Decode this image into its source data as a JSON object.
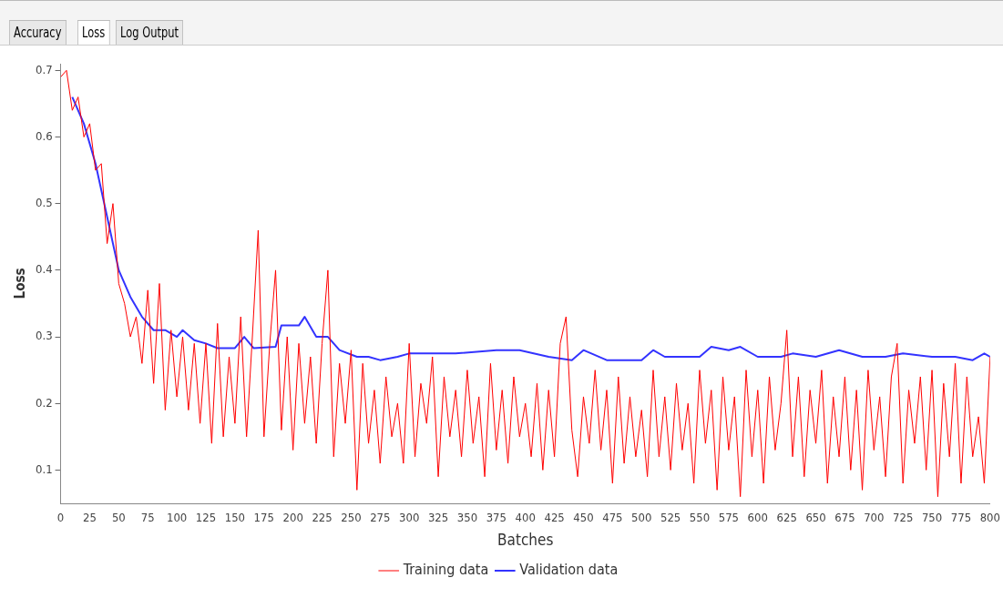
{
  "chart_data": {
    "type": "line",
    "xlabel": "Batches",
    "ylabel": "Loss",
    "annotations": [
      "Accuracy",
      "Loss",
      "Log Output"
    ],
    "xlim": [
      0,
      800
    ],
    "xticks": [
      0,
      25,
      50,
      75,
      100,
      125,
      150,
      175,
      200,
      225,
      250,
      275,
      300,
      325,
      350,
      375,
      400,
      425,
      450,
      475,
      500,
      525,
      550,
      575,
      600,
      625,
      650,
      675,
      700,
      725,
      750,
      775,
      800
    ],
    "ylim": [
      0.05,
      0.71
    ],
    "yticks": [
      0.1,
      0.2,
      0.3,
      0.4,
      0.5,
      0.6,
      0.7
    ],
    "legend": "bottom",
    "marker": "none",
    "series": [
      {
        "name": "Training data",
        "color": "#ff0000",
        "x": [
          0,
          5,
          10,
          15,
          20,
          25,
          30,
          35,
          40,
          45,
          50,
          55,
          60,
          65,
          70,
          75,
          80,
          85,
          90,
          95,
          100,
          105,
          110,
          115,
          120,
          125,
          130,
          135,
          140,
          145,
          150,
          155,
          160,
          165,
          170,
          175,
          180,
          185,
          190,
          195,
          200,
          205,
          210,
          215,
          220,
          225,
          230,
          235,
          240,
          245,
          250,
          255,
          260,
          265,
          270,
          275,
          280,
          285,
          290,
          295,
          300,
          305,
          310,
          315,
          320,
          325,
          330,
          335,
          340,
          345,
          350,
          355,
          360,
          365,
          370,
          375,
          380,
          385,
          390,
          395,
          400,
          405,
          410,
          415,
          420,
          425,
          430,
          435,
          440,
          445,
          450,
          455,
          460,
          465,
          470,
          475,
          480,
          485,
          490,
          495,
          500,
          505,
          510,
          515,
          520,
          525,
          530,
          535,
          540,
          545,
          550,
          555,
          560,
          565,
          570,
          575,
          580,
          585,
          590,
          595,
          600,
          605,
          610,
          615,
          620,
          625,
          630,
          635,
          640,
          645,
          650,
          655,
          660,
          665,
          670,
          675,
          680,
          685,
          690,
          695,
          700,
          705,
          710,
          715,
          720,
          725,
          730,
          735,
          740,
          745,
          750,
          755,
          760,
          765,
          770,
          775,
          780,
          785,
          790,
          795,
          800
        ],
        "values": [
          0.69,
          0.7,
          0.64,
          0.66,
          0.6,
          0.62,
          0.55,
          0.56,
          0.44,
          0.5,
          0.38,
          0.35,
          0.3,
          0.33,
          0.26,
          0.37,
          0.23,
          0.38,
          0.19,
          0.31,
          0.21,
          0.3,
          0.19,
          0.29,
          0.17,
          0.29,
          0.14,
          0.32,
          0.15,
          0.27,
          0.17,
          0.33,
          0.15,
          0.3,
          0.46,
          0.15,
          0.29,
          0.4,
          0.16,
          0.3,
          0.13,
          0.29,
          0.17,
          0.27,
          0.14,
          0.29,
          0.4,
          0.12,
          0.26,
          0.17,
          0.28,
          0.07,
          0.26,
          0.14,
          0.22,
          0.11,
          0.24,
          0.15,
          0.2,
          0.11,
          0.29,
          0.12,
          0.23,
          0.17,
          0.27,
          0.09,
          0.24,
          0.15,
          0.22,
          0.12,
          0.25,
          0.14,
          0.21,
          0.09,
          0.26,
          0.13,
          0.22,
          0.11,
          0.24,
          0.15,
          0.2,
          0.12,
          0.23,
          0.1,
          0.22,
          0.12,
          0.29,
          0.33,
          0.16,
          0.09,
          0.21,
          0.14,
          0.25,
          0.13,
          0.22,
          0.08,
          0.24,
          0.11,
          0.21,
          0.12,
          0.19,
          0.09,
          0.25,
          0.12,
          0.21,
          0.1,
          0.23,
          0.13,
          0.2,
          0.08,
          0.25,
          0.14,
          0.22,
          0.07,
          0.24,
          0.13,
          0.21,
          0.06,
          0.25,
          0.12,
          0.22,
          0.08,
          0.24,
          0.13,
          0.2,
          0.31,
          0.12,
          0.24,
          0.09,
          0.22,
          0.14,
          0.25,
          0.08,
          0.21,
          0.12,
          0.24,
          0.1,
          0.22,
          0.07,
          0.25,
          0.13,
          0.21,
          0.09,
          0.24,
          0.29,
          0.08,
          0.22,
          0.14,
          0.24,
          0.1,
          0.25,
          0.06,
          0.23,
          0.12,
          0.26,
          0.08,
          0.24,
          0.12,
          0.18,
          0.08,
          0.27
        ]
      },
      {
        "name": "Validation data",
        "color": "#3333ff",
        "x": [
          10,
          20,
          30,
          40,
          50,
          60,
          70,
          80,
          90,
          100,
          105,
          115,
          125,
          135,
          150,
          158,
          166,
          185,
          190,
          205,
          210,
          220,
          230,
          240,
          255,
          265,
          275,
          290,
          300,
          340,
          375,
          395,
          420,
          440,
          450,
          470,
          500,
          510,
          520,
          550,
          560,
          575,
          585,
          600,
          620,
          630,
          650,
          670,
          690,
          710,
          725,
          750,
          770,
          785,
          795,
          800
        ],
        "values": [
          0.66,
          0.62,
          0.56,
          0.48,
          0.4,
          0.36,
          0.33,
          0.31,
          0.31,
          0.3,
          0.31,
          0.295,
          0.29,
          0.283,
          0.283,
          0.3,
          0.283,
          0.285,
          0.317,
          0.317,
          0.33,
          0.3,
          0.3,
          0.28,
          0.27,
          0.27,
          0.265,
          0.27,
          0.275,
          0.275,
          0.28,
          0.28,
          0.27,
          0.265,
          0.28,
          0.265,
          0.265,
          0.28,
          0.27,
          0.27,
          0.285,
          0.28,
          0.285,
          0.27,
          0.27,
          0.275,
          0.27,
          0.28,
          0.27,
          0.27,
          0.275,
          0.27,
          0.27,
          0.265,
          0.275,
          0.27
        ]
      }
    ]
  }
}
